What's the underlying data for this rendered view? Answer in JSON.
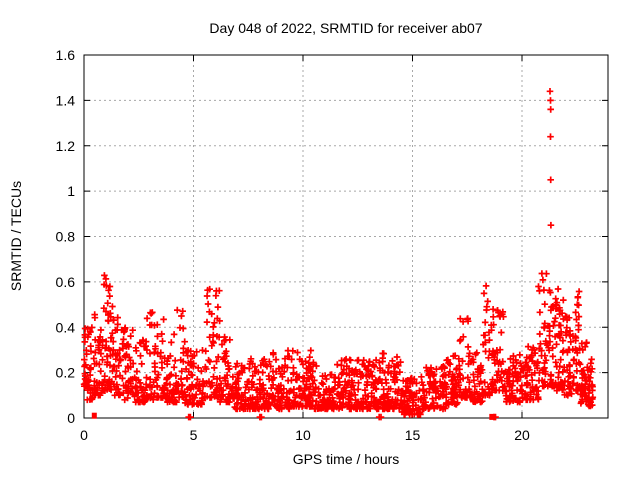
{
  "chart_data": {
    "type": "scatter",
    "title": "Day 048 of 2022, SRMTID for receiver ab07",
    "xlabel": "GPS time / hours",
    "ylabel": "SRMTID / TECUs",
    "xlim": [
      0,
      23.93
    ],
    "ylim": [
      0,
      1.6
    ],
    "xticks": [
      0,
      5,
      10,
      15,
      20
    ],
    "xtick_labels": [
      "0",
      "5",
      "10",
      "15",
      "20"
    ],
    "yticks": [
      0,
      0.2,
      0.4,
      0.6,
      0.8,
      1.0,
      1.2,
      1.4,
      1.6
    ],
    "ytick_labels": [
      "0",
      "0.2",
      "0.4",
      "0.6",
      "0.8",
      "1",
      "1.2",
      "1.4",
      "1.6"
    ],
    "grid": true,
    "legend": "none",
    "marker": "plus",
    "marker_color": "#ff0000",
    "grid_color": "#a8a8a8",
    "frame_color": "#000000",
    "seed": 20248,
    "density_bins_format": [
      "t_start_hours",
      "t_end_hours",
      "n_points",
      "y_min_TECUs",
      "y_max_TECUs",
      "skew_exponent"
    ],
    "density_bins": [
      [
        0.0,
        0.12,
        18,
        0.14,
        0.44,
        1.6
      ],
      [
        0.12,
        0.45,
        30,
        0.08,
        0.4,
        1.8
      ],
      [
        0.45,
        0.8,
        35,
        0.1,
        0.46,
        2.0
      ],
      [
        0.8,
        1.3,
        52,
        0.12,
        0.66,
        1.7
      ],
      [
        1.3,
        1.8,
        42,
        0.1,
        0.47,
        2.0
      ],
      [
        1.8,
        2.3,
        40,
        0.08,
        0.42,
        2.2
      ],
      [
        2.3,
        2.8,
        40,
        0.07,
        0.36,
        2.2
      ],
      [
        2.8,
        3.3,
        40,
        0.08,
        0.5,
        2.4
      ],
      [
        3.3,
        3.8,
        40,
        0.09,
        0.46,
        2.2
      ],
      [
        3.8,
        4.25,
        38,
        0.07,
        0.4,
        2.2
      ],
      [
        4.25,
        4.6,
        28,
        0.09,
        0.5,
        2.4
      ],
      [
        4.6,
        5.5,
        70,
        0.06,
        0.3,
        2.0
      ],
      [
        5.5,
        6.2,
        58,
        0.09,
        0.57,
        2.3
      ],
      [
        6.2,
        6.8,
        48,
        0.07,
        0.36,
        2.2
      ],
      [
        6.8,
        7.6,
        65,
        0.04,
        0.25,
        2.0
      ],
      [
        7.6,
        8.5,
        75,
        0.04,
        0.27,
        2.2
      ],
      [
        8.5,
        9.4,
        75,
        0.04,
        0.3,
        2.3
      ],
      [
        9.4,
        10.5,
        92,
        0.05,
        0.3,
        2.0
      ],
      [
        10.5,
        11.5,
        85,
        0.04,
        0.23,
        2.0
      ],
      [
        11.5,
        12.5,
        85,
        0.04,
        0.26,
        2.2
      ],
      [
        12.5,
        13.5,
        85,
        0.04,
        0.26,
        2.2
      ],
      [
        13.5,
        14.5,
        85,
        0.04,
        0.29,
        2.2
      ],
      [
        14.5,
        15.4,
        78,
        0.015,
        0.18,
        2.0
      ],
      [
        15.4,
        16.5,
        90,
        0.04,
        0.23,
        2.0
      ],
      [
        16.5,
        17.1,
        52,
        0.06,
        0.28,
        2.0
      ],
      [
        17.1,
        17.65,
        45,
        0.09,
        0.46,
        2.3
      ],
      [
        17.65,
        18.2,
        45,
        0.07,
        0.32,
        2.2
      ],
      [
        18.2,
        18.65,
        42,
        0.1,
        0.6,
        2.3
      ],
      [
        18.65,
        19.25,
        48,
        0.12,
        0.48,
        1.8
      ],
      [
        19.25,
        20.0,
        62,
        0.07,
        0.28,
        2.0
      ],
      [
        20.0,
        20.75,
        62,
        0.08,
        0.32,
        2.0
      ],
      [
        20.75,
        21.15,
        36,
        0.14,
        0.65,
        2.0
      ],
      [
        21.15,
        21.55,
        40,
        0.14,
        0.62,
        2.1
      ],
      [
        21.55,
        21.95,
        40,
        0.12,
        0.58,
        2.0
      ],
      [
        21.95,
        22.3,
        35,
        0.1,
        0.46,
        2.0
      ],
      [
        22.3,
        22.65,
        40,
        0.12,
        0.57,
        2.0
      ],
      [
        22.65,
        23.05,
        40,
        0.06,
        0.38,
        1.9
      ],
      [
        23.05,
        23.25,
        22,
        0.05,
        0.26,
        1.7
      ]
    ],
    "outlier_points": [
      [
        21.28,
        1.44
      ],
      [
        21.3,
        1.4
      ],
      [
        21.31,
        1.36
      ],
      [
        21.3,
        1.24
      ],
      [
        21.31,
        1.05
      ],
      [
        21.32,
        0.85
      ]
    ],
    "zero_square_points": [
      [
        0.47,
        0.01
      ],
      [
        18.62,
        0.005
      ]
    ],
    "near_zero_plus_points": [
      [
        4.78,
        0.004
      ],
      [
        4.86,
        0.004
      ],
      [
        8.03,
        0.004
      ],
      [
        8.1,
        0.004
      ],
      [
        13.48,
        0.004
      ],
      [
        13.56,
        0.004
      ],
      [
        18.72,
        0.004
      ],
      [
        18.79,
        0.004
      ]
    ]
  }
}
